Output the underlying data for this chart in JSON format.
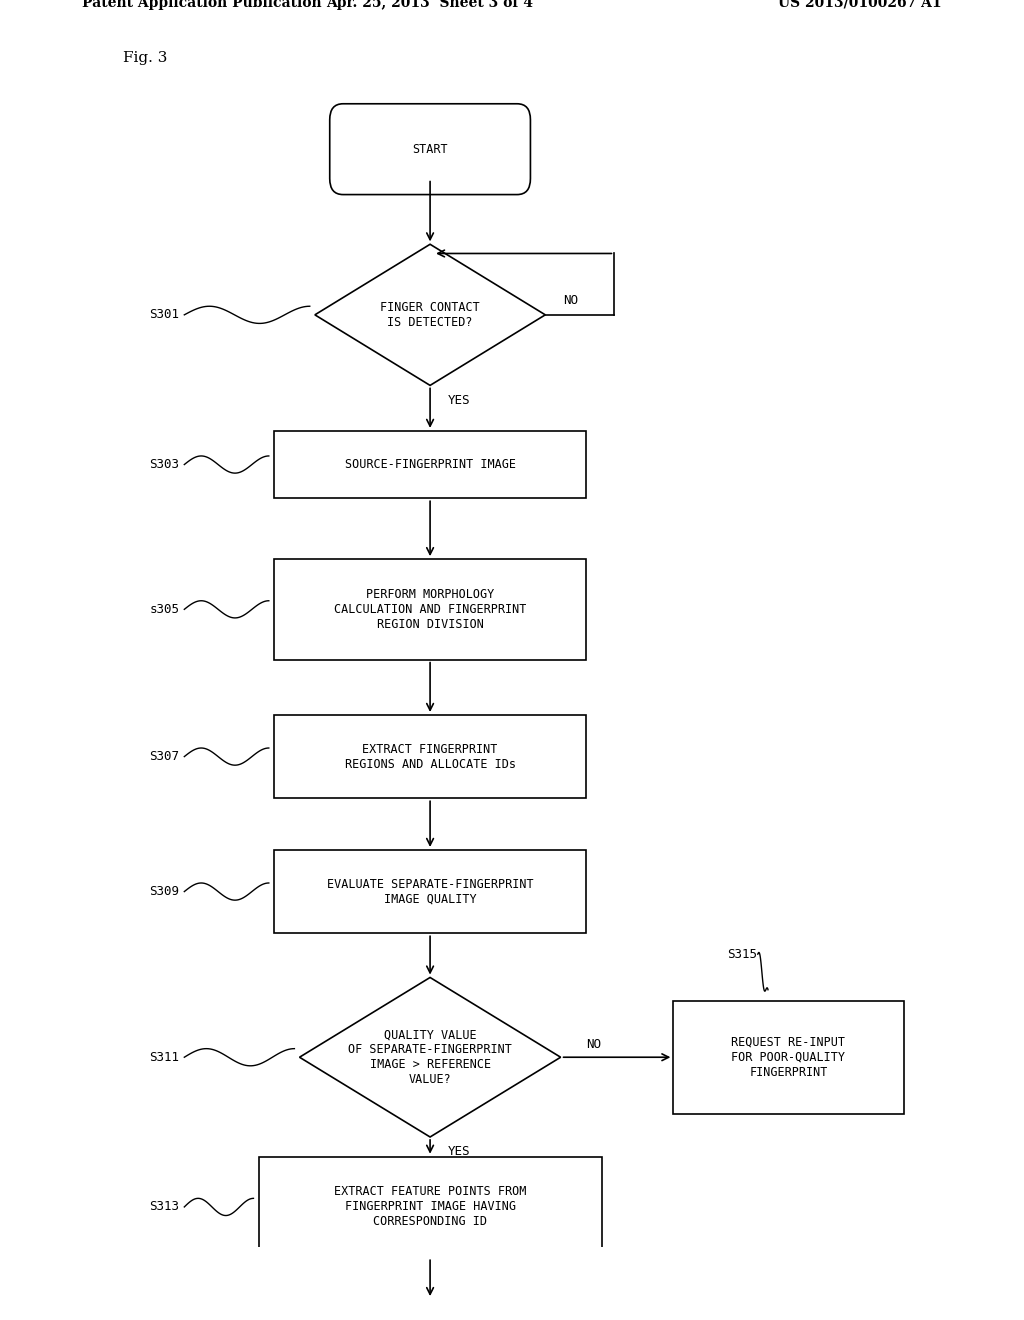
{
  "bg_color": "#ffffff",
  "header_left": "Patent Application Publication",
  "header_center": "Apr. 25, 2013  Sheet 3 of 4",
  "header_right": "US 2013/0100267 A1",
  "fig_label": "Fig. 3",
  "font_size_node": 8.5,
  "font_size_header": 10,
  "font_size_label": 9
}
